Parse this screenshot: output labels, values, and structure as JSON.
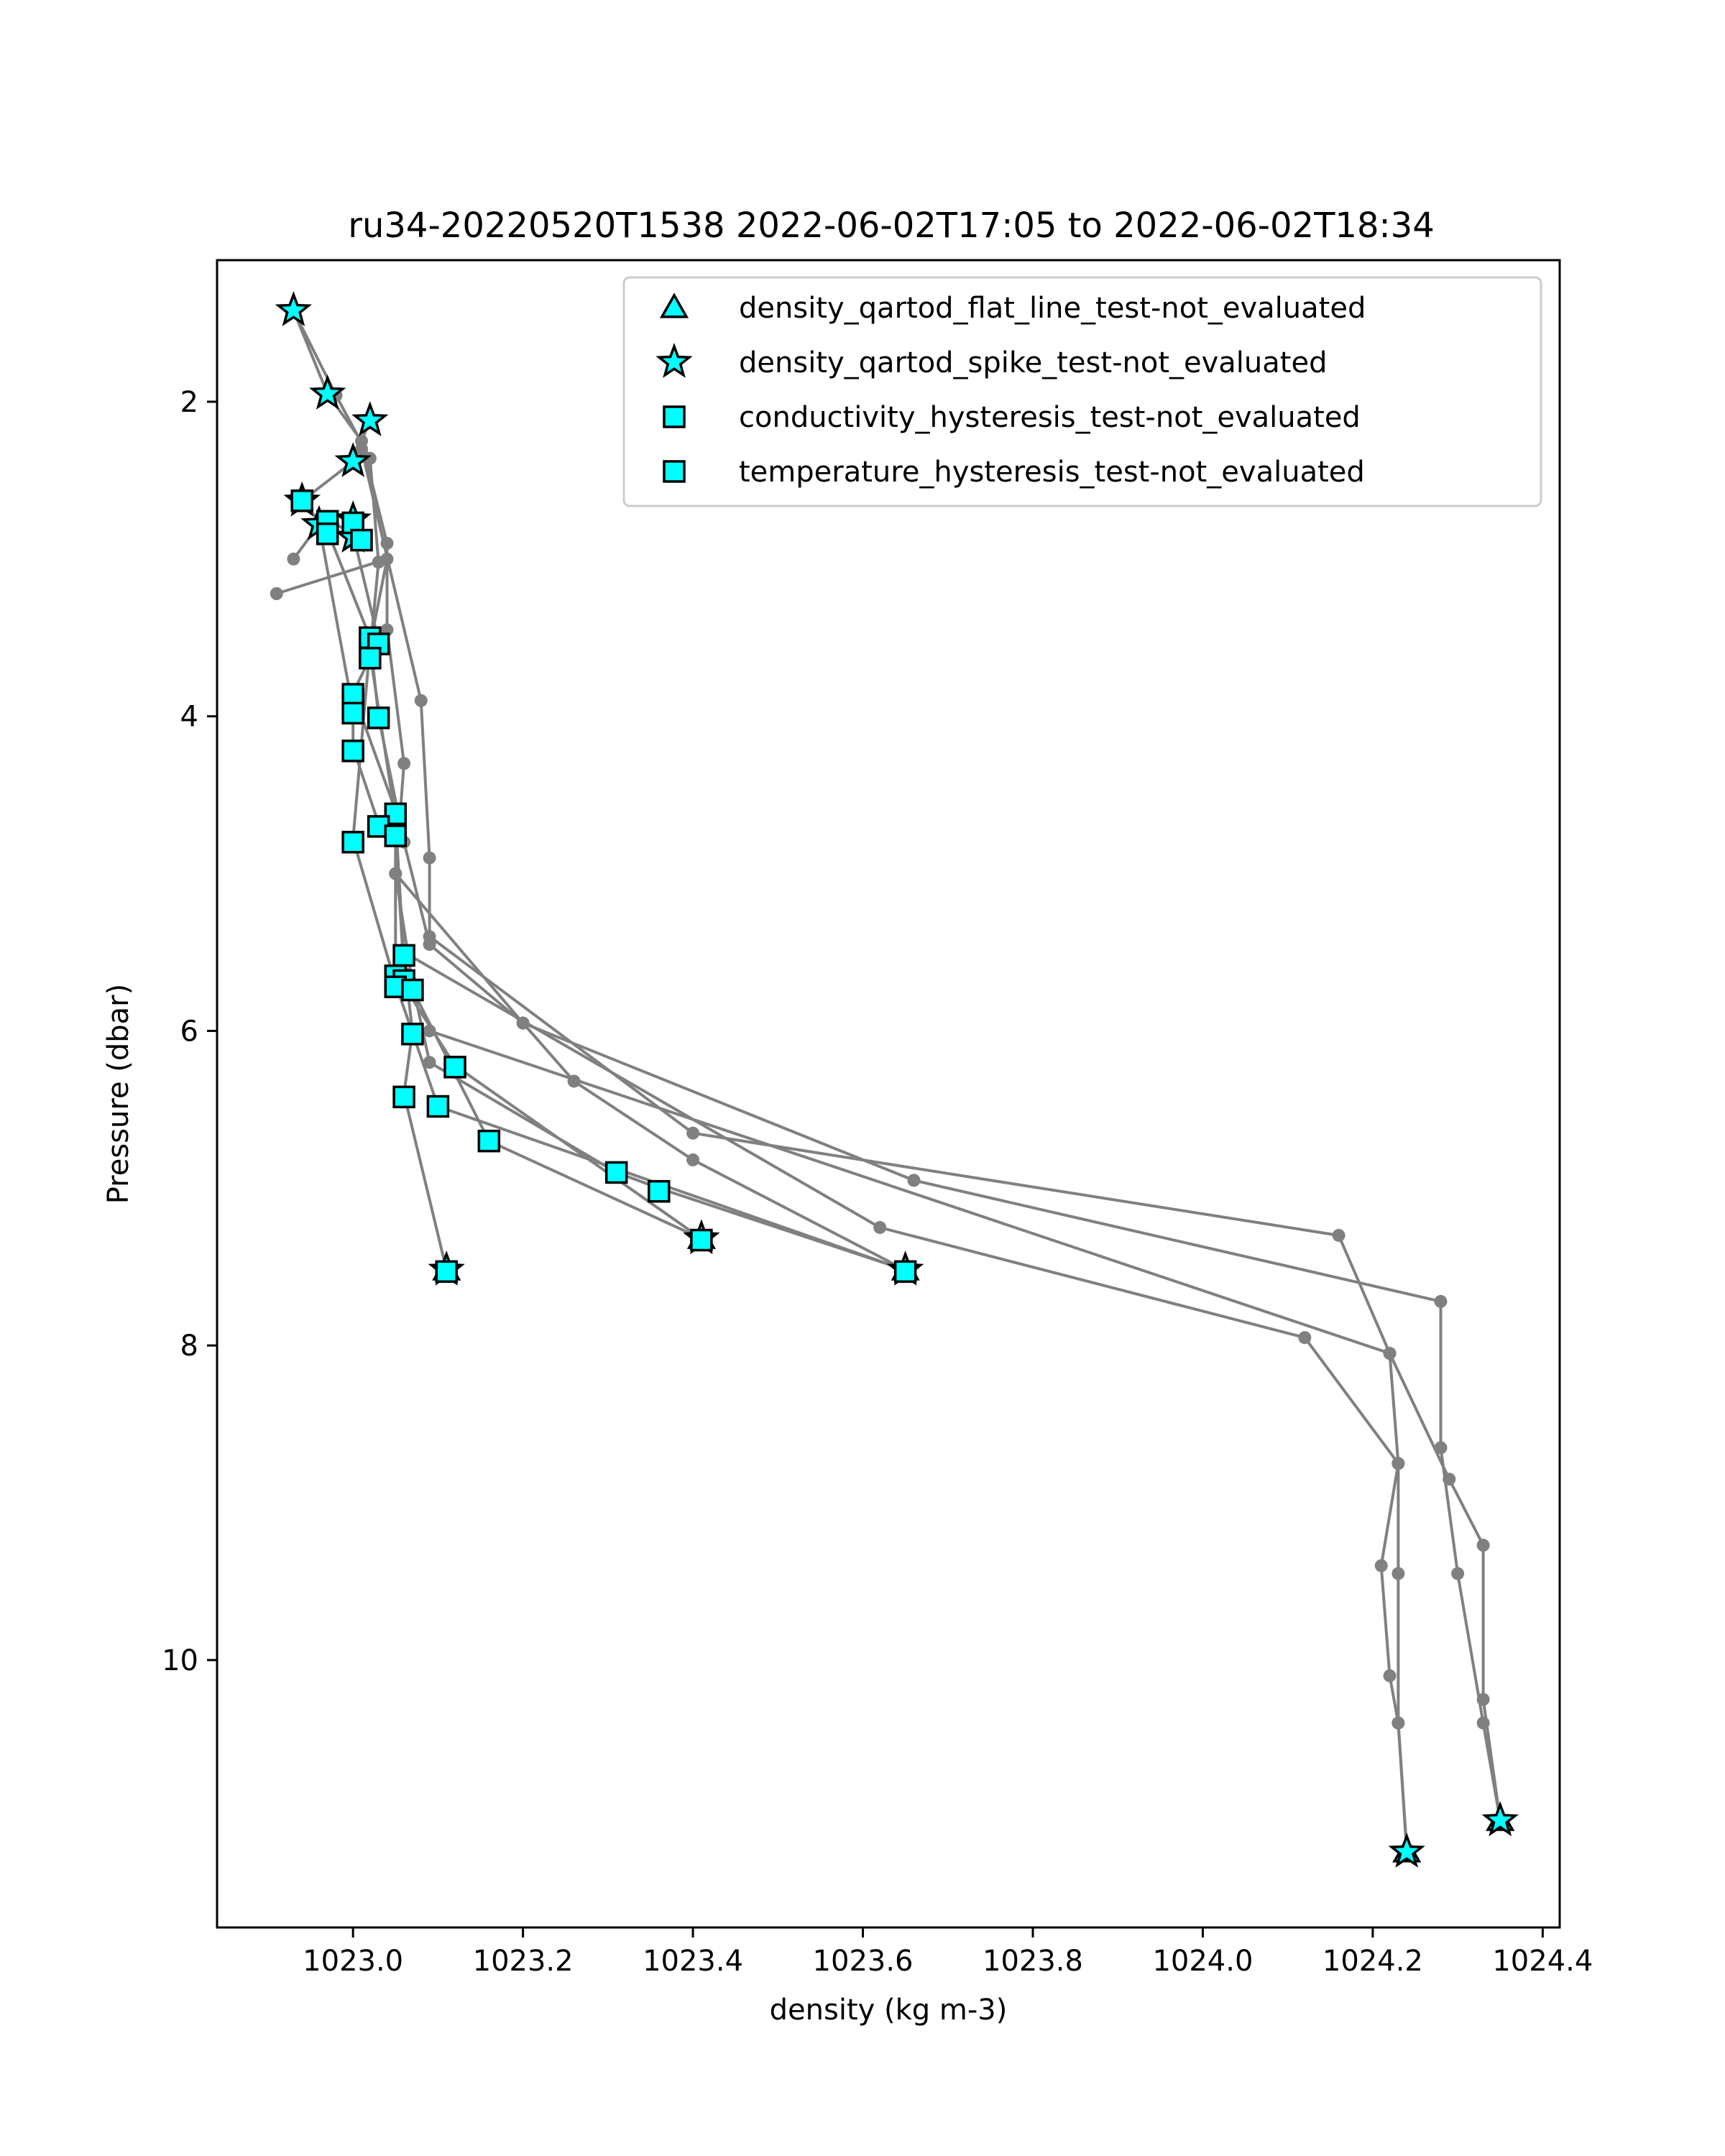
{
  "chart_data": {
    "type": "scatter",
    "title": "ru34-20220520T1538 2022-06-02T17:05 to 2022-06-02T18:34",
    "xlabel": "density (kg m-3)",
    "ylabel": "Pressure (dbar)",
    "xlim": [
      1022.84,
      1024.42
    ],
    "ylim": [
      11.7,
      1.1
    ],
    "y_inverted": true,
    "grid": false,
    "legend_position": "top-right",
    "xticks": [
      1023.0,
      1023.2,
      1023.4,
      1023.6,
      1023.8,
      1024.0,
      1024.2,
      1024.4
    ],
    "xtick_labels": [
      "1023.0",
      "1023.2",
      "1023.4",
      "1023.6",
      "1023.8",
      "1024.0",
      "1024.2",
      "1024.4"
    ],
    "yticks": [
      2,
      4,
      6,
      8,
      10
    ],
    "ytick_labels": [
      "2",
      "4",
      "6",
      "8",
      "10"
    ],
    "colors": {
      "line": "#808080",
      "marker_fill": "#00ffff",
      "marker_edge": "#000000"
    },
    "profiles": [
      {
        "points": [
          [
            1022.93,
            1.42
          ],
          [
            1022.97,
            1.95
          ],
          [
            1023.01,
            2.25
          ],
          [
            1023.04,
            2.9
          ],
          [
            1023.04,
            3.45
          ],
          [
            1023.06,
            4.3
          ],
          [
            1023.05,
            5.0
          ],
          [
            1023.07,
            5.7
          ],
          [
            1023.09,
            6.2
          ],
          [
            1023.31,
            6.9
          ],
          [
            1023.36,
            7.0
          ],
          [
            1023.65,
            7.52
          ]
        ]
      },
      {
        "points": [
          [
            1022.93,
            1.42
          ],
          [
            1022.98,
            1.96
          ],
          [
            1023.02,
            2.36
          ],
          [
            1023.03,
            3.02
          ],
          [
            1023.02,
            3.6
          ],
          [
            1023.05,
            4.65
          ],
          [
            1023.06,
            5.55
          ],
          [
            1023.07,
            6.0
          ],
          [
            1023.06,
            6.4
          ],
          [
            1023.11,
            7.52
          ]
        ]
      },
      {
        "points": [
          [
            1023.02,
            2.12
          ],
          [
            1023.0,
            2.38
          ],
          [
            1022.94,
            2.63
          ],
          [
            1022.97,
            2.82
          ],
          [
            1023.02,
            3.5
          ],
          [
            1023.03,
            4.0
          ],
          [
            1023.06,
            4.8
          ],
          [
            1023.09,
            5.45
          ],
          [
            1023.2,
            5.95
          ],
          [
            1023.26,
            6.32
          ],
          [
            1023.4,
            6.82
          ],
          [
            1023.65,
            7.52
          ]
        ]
      },
      {
        "points": [
          [
            1022.97,
            2.75
          ],
          [
            1023.0,
            2.84
          ],
          [
            1023.03,
            3.52
          ],
          [
            1023.0,
            3.85
          ],
          [
            1023.05,
            4.6
          ],
          [
            1023.05,
            5.63
          ],
          [
            1023.12,
            6.22
          ],
          [
            1023.41,
            7.32
          ]
        ]
      },
      {
        "points": [
          [
            1022.93,
            3.0
          ],
          [
            1022.96,
            2.78
          ],
          [
            1023.0,
            3.96
          ],
          [
            1023.0,
            4.2
          ],
          [
            1023.03,
            4.68
          ],
          [
            1023.05,
            4.75
          ],
          [
            1023.06,
            5.63
          ],
          [
            1023.16,
            6.7
          ],
          [
            1023.41,
            7.32
          ]
        ]
      },
      {
        "points": [
          [
            1022.91,
            3.22
          ],
          [
            1023.04,
            3.0
          ],
          [
            1023.02,
            3.55
          ],
          [
            1023.0,
            4.78
          ],
          [
            1023.05,
            5.7
          ],
          [
            1023.1,
            6.48
          ],
          [
            1023.65,
            7.52
          ]
        ]
      },
      {
        "points": [
          [
            1023.01,
            2.3
          ],
          [
            1023.08,
            3.9
          ],
          [
            1023.09,
            4.9
          ],
          [
            1023.09,
            5.4
          ],
          [
            1023.4,
            6.65
          ],
          [
            1024.16,
            7.3
          ],
          [
            1024.22,
            8.05
          ],
          [
            1024.23,
            8.75
          ],
          [
            1024.21,
            9.4
          ],
          [
            1024.22,
            10.1
          ],
          [
            1024.23,
            10.4
          ],
          [
            1024.24,
            11.22
          ]
        ]
      },
      {
        "points": [
          [
            1023.05,
            5.0
          ],
          [
            1023.2,
            5.95
          ],
          [
            1023.66,
            6.95
          ],
          [
            1024.28,
            7.72
          ],
          [
            1024.28,
            8.65
          ],
          [
            1024.3,
            9.45
          ],
          [
            1024.33,
            10.4
          ],
          [
            1024.35,
            11.02
          ]
        ]
      },
      {
        "points": [
          [
            1023.06,
            5.5
          ],
          [
            1023.62,
            7.25
          ],
          [
            1024.12,
            7.95
          ],
          [
            1024.23,
            8.75
          ],
          [
            1024.23,
            9.45
          ],
          [
            1024.23,
            10.4
          ],
          [
            1024.24,
            11.2
          ]
        ]
      },
      {
        "points": [
          [
            1023.09,
            6.0
          ],
          [
            1024.22,
            8.05
          ],
          [
            1024.29,
            8.85
          ],
          [
            1024.33,
            9.27
          ],
          [
            1024.33,
            10.25
          ],
          [
            1024.35,
            11.02
          ]
        ]
      }
    ],
    "flag_points": {
      "stars": [
        [
          1022.93,
          1.42
        ],
        [
          1022.97,
          1.95
        ],
        [
          1023.02,
          2.12
        ],
        [
          1023.0,
          2.38
        ],
        [
          1022.94,
          2.63
        ],
        [
          1022.96,
          2.78
        ],
        [
          1023.0,
          2.75
        ],
        [
          1023.0,
          2.86
        ],
        [
          1023.11,
          7.52
        ],
        [
          1023.41,
          7.32
        ],
        [
          1023.65,
          7.52
        ],
        [
          1024.24,
          11.22
        ],
        [
          1024.35,
          11.02
        ]
      ],
      "triangles": [
        [
          1023.11,
          7.52
        ],
        [
          1023.41,
          7.32
        ],
        [
          1023.65,
          7.52
        ],
        [
          1024.24,
          11.22
        ],
        [
          1024.35,
          11.02
        ]
      ],
      "squares": [
        [
          1022.94,
          2.63
        ],
        [
          1022.97,
          2.76
        ],
        [
          1022.97,
          2.84
        ],
        [
          1023.0,
          2.77
        ],
        [
          1023.01,
          2.88
        ],
        [
          1023.02,
          3.5
        ],
        [
          1023.03,
          3.54
        ],
        [
          1023.02,
          3.63
        ],
        [
          1023.0,
          3.86
        ],
        [
          1023.0,
          3.98
        ],
        [
          1023.03,
          4.01
        ],
        [
          1023.0,
          4.22
        ],
        [
          1023.05,
          4.62
        ],
        [
          1023.03,
          4.7
        ],
        [
          1023.05,
          4.76
        ],
        [
          1023.0,
          4.8
        ],
        [
          1023.06,
          5.52
        ],
        [
          1023.05,
          5.65
        ],
        [
          1023.06,
          5.68
        ],
        [
          1023.05,
          5.72
        ],
        [
          1023.07,
          5.74
        ],
        [
          1023.07,
          6.02
        ],
        [
          1023.12,
          6.23
        ],
        [
          1023.06,
          6.42
        ],
        [
          1023.1,
          6.48
        ],
        [
          1023.16,
          6.7
        ],
        [
          1023.31,
          6.9
        ],
        [
          1023.36,
          7.02
        ],
        [
          1023.41,
          7.33
        ],
        [
          1023.11,
          7.53
        ],
        [
          1023.65,
          7.53
        ]
      ]
    },
    "legend": [
      {
        "label": "density_qartod_flat_line_test-not_evaluated",
        "marker": "triangle"
      },
      {
        "label": "density_qartod_spike_test-not_evaluated",
        "marker": "star"
      },
      {
        "label": "conductivity_hysteresis_test-not_evaluated",
        "marker": "square"
      },
      {
        "label": "temperature_hysteresis_test-not_evaluated",
        "marker": "square"
      }
    ]
  }
}
